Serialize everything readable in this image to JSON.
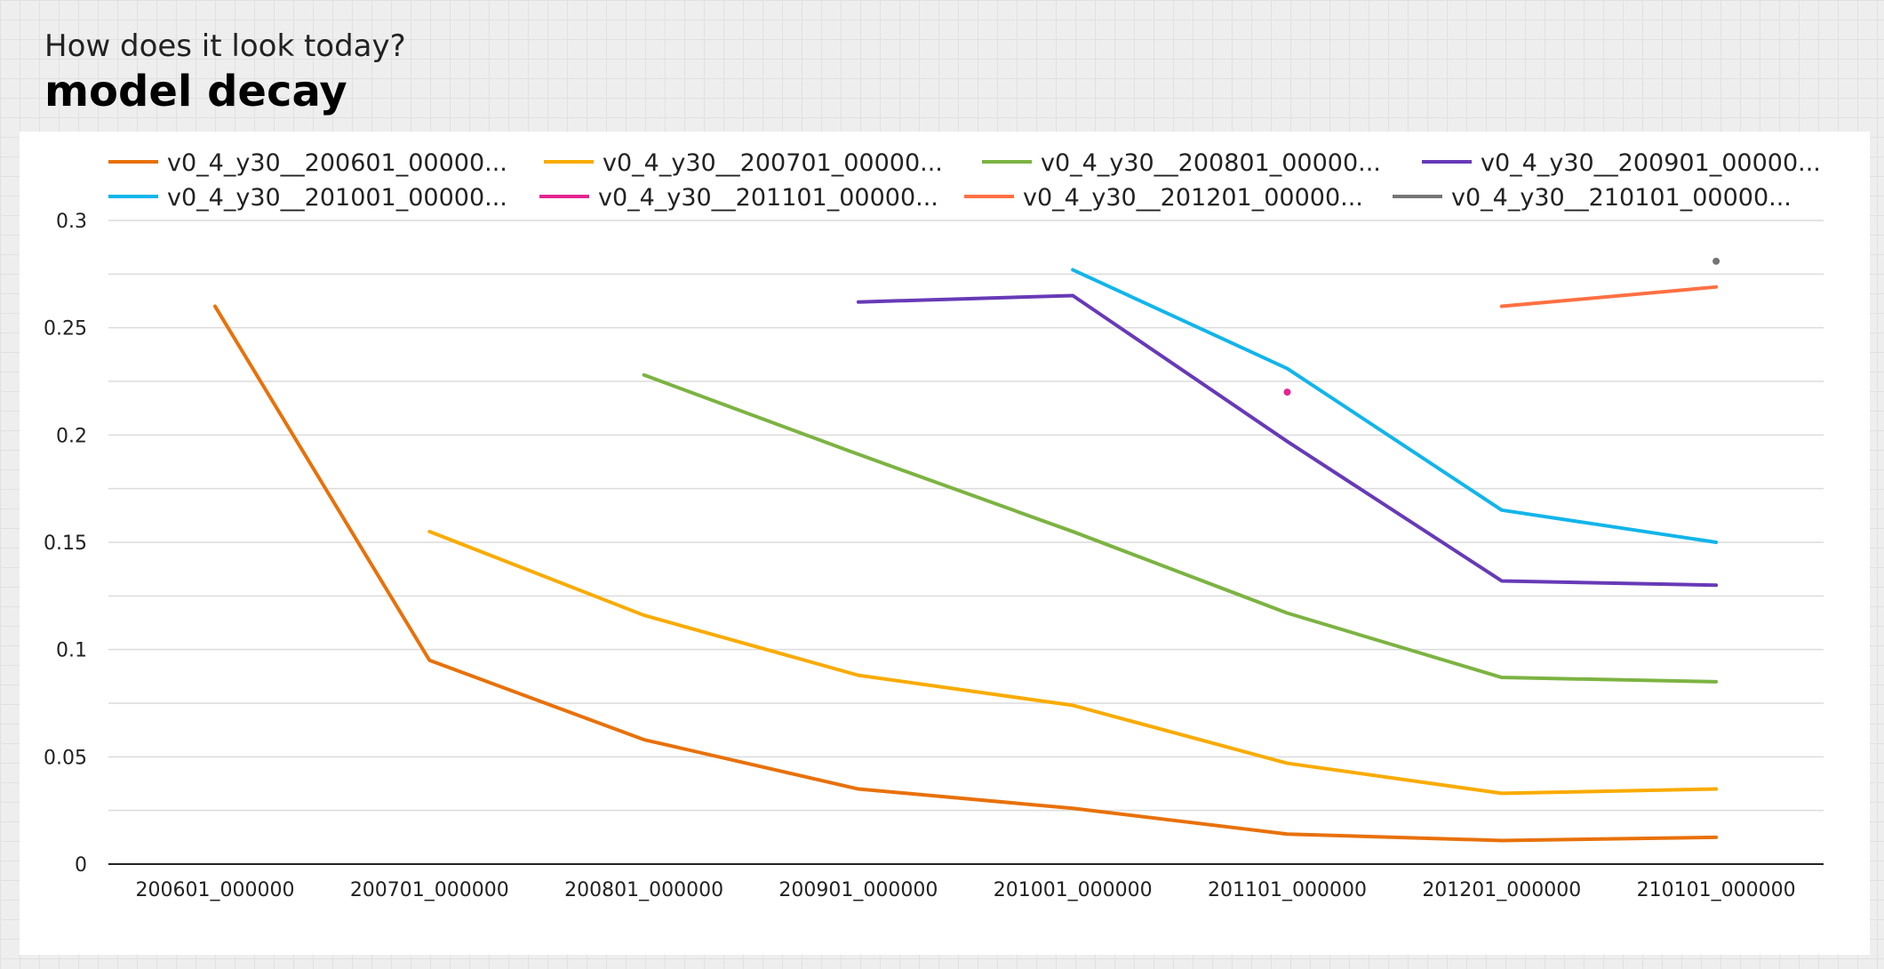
{
  "header": {
    "subtitle": "How does it look today?",
    "title": "model decay"
  },
  "chart_data": {
    "type": "line",
    "title": "model decay",
    "subtitle": "How does it look today?",
    "xlabel": "",
    "ylabel": "",
    "categories": [
      "200601_000000",
      "200701_000000",
      "200801_000000",
      "200901_000000",
      "201001_000000",
      "201101_000000",
      "201201_000000",
      "210101_000000"
    ],
    "y_ticks": [
      "0",
      "0.05",
      "0.1",
      "0.15",
      "0.2",
      "0.25",
      "0.3"
    ],
    "ylim": [
      0,
      0.3
    ],
    "grid": true,
    "legend_position": "top",
    "series": [
      {
        "name": "v0_4_y30__200601_00000...",
        "color": "#e8710a",
        "values": [
          0.26,
          0.095,
          0.058,
          0.035,
          0.026,
          0.014,
          0.011,
          0.0125
        ]
      },
      {
        "name": "v0_4_y30__200701_00000...",
        "color": "#f9ab00",
        "values": [
          null,
          0.155,
          0.116,
          0.088,
          0.074,
          0.047,
          0.033,
          0.035
        ]
      },
      {
        "name": "v0_4_y30__200801_00000...",
        "color": "#7cb342",
        "values": [
          null,
          null,
          0.228,
          0.191,
          0.155,
          0.117,
          0.087,
          0.085
        ]
      },
      {
        "name": "v0_4_y30__200901_00000...",
        "color": "#673ab7",
        "values": [
          null,
          null,
          null,
          0.262,
          0.265,
          0.197,
          0.132,
          0.13
        ]
      },
      {
        "name": "v0_4_y30__201001_00000...",
        "color": "#12b5ea",
        "values": [
          null,
          null,
          null,
          null,
          0.277,
          0.231,
          0.165,
          0.15
        ]
      },
      {
        "name": "v0_4_y30__201101_00000...",
        "color": "#e52592",
        "values": [
          null,
          null,
          null,
          null,
          null,
          0.22,
          null,
          null
        ]
      },
      {
        "name": "v0_4_y30__201201_00000...",
        "color": "#ff7043",
        "values": [
          null,
          null,
          null,
          null,
          null,
          null,
          0.26,
          0.269
        ]
      },
      {
        "name": "v0_4_y30__210101_00000...",
        "color": "#757575",
        "values": [
          null,
          null,
          null,
          null,
          null,
          null,
          null,
          0.281
        ]
      }
    ]
  }
}
